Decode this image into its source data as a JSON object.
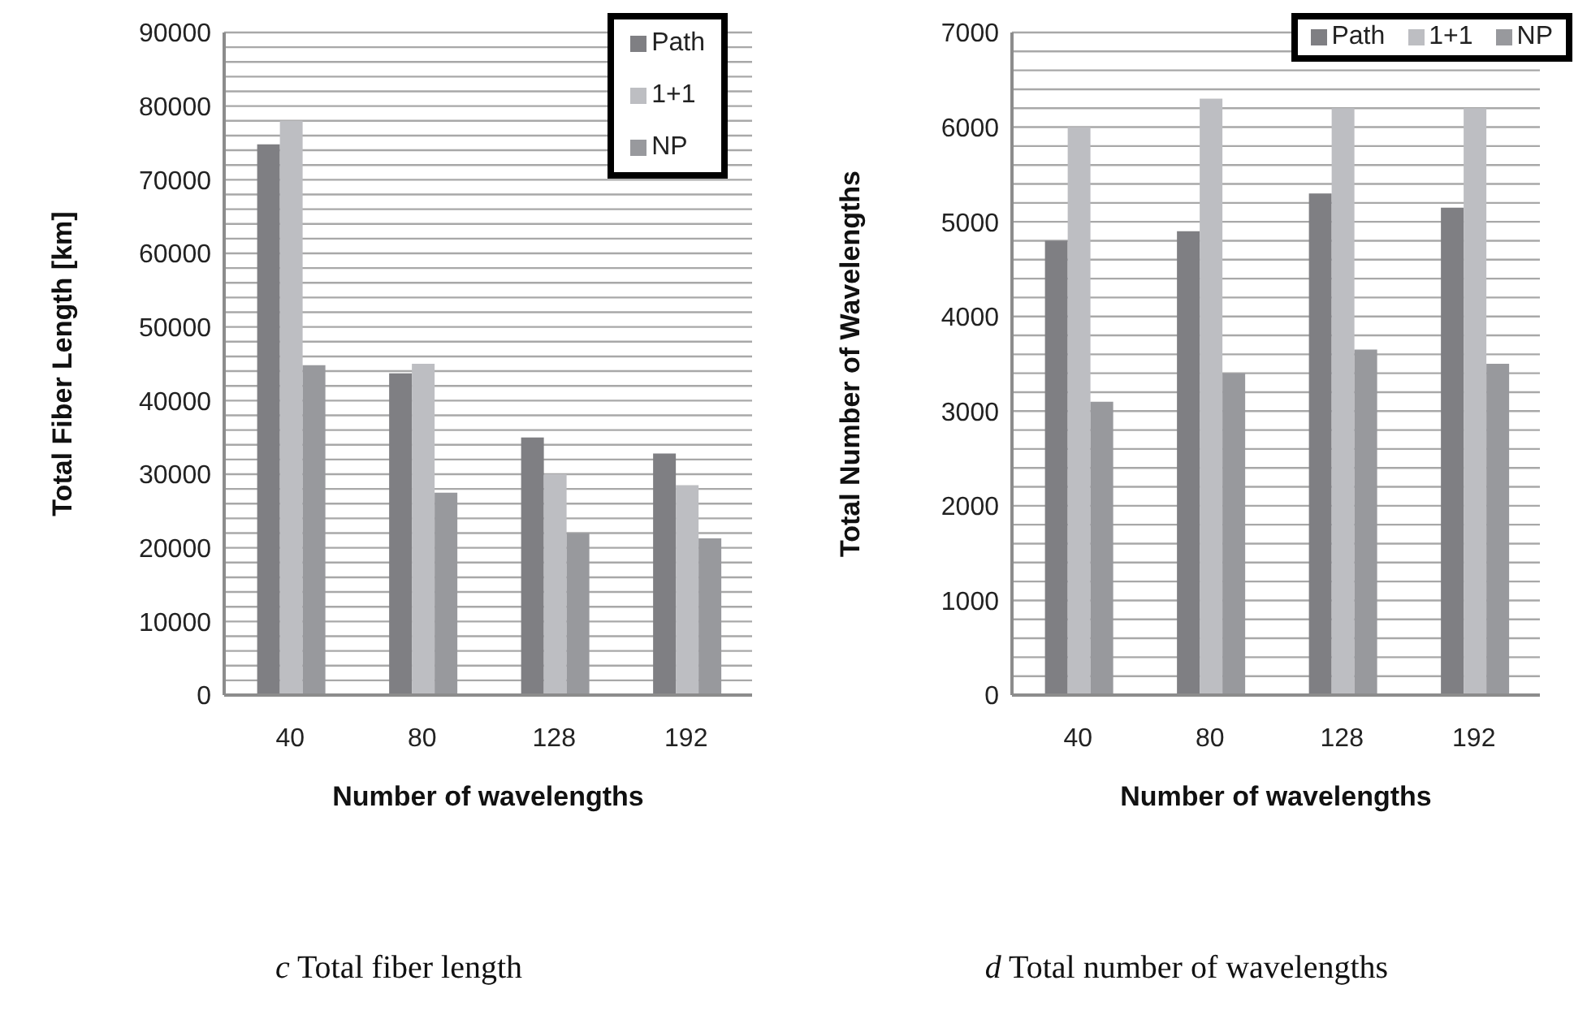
{
  "chart_data": [
    {
      "type": "bar",
      "xlabel": "Number of wavelengths",
      "ylabel": "Total Fiber Length [km]",
      "categories": [
        "40",
        "80",
        "128",
        "192"
      ],
      "series": [
        {
          "name": "Path",
          "color": "#7f7f83",
          "values": [
            74800,
            43700,
            35000,
            32800
          ]
        },
        {
          "name": "1+1",
          "color": "#bdbec2",
          "values": [
            78000,
            45000,
            30000,
            28500
          ]
        },
        {
          "name": "NP",
          "color": "#98999d",
          "values": [
            44800,
            27500,
            22000,
            21300
          ]
        }
      ],
      "ylim": [
        0,
        90000
      ],
      "yticks": [
        0,
        {
          "value": 2000,
          "label": null
        },
        {
          "value": 4000,
          "label": null
        },
        {
          "value": 6000,
          "label": null
        },
        {
          "value": 8000,
          "label": null
        },
        10000,
        {
          "value": 12000,
          "label": null
        },
        {
          "value": 14000,
          "label": null
        },
        {
          "value": 16000,
          "label": null
        },
        {
          "value": 18000,
          "label": null
        },
        20000,
        {
          "value": 22000,
          "label": null
        },
        {
          "value": 24000,
          "label": null
        },
        {
          "value": 26000,
          "label": null
        },
        {
          "value": 28000,
          "label": null
        },
        30000,
        {
          "value": 32000,
          "label": null
        },
        {
          "value": 34000,
          "label": null
        },
        {
          "value": 36000,
          "label": null
        },
        {
          "value": 38000,
          "label": null
        },
        40000,
        {
          "value": 42000,
          "label": null
        },
        {
          "value": 44000,
          "label": null
        },
        {
          "value": 46000,
          "label": null
        },
        {
          "value": 48000,
          "label": null
        },
        50000,
        {
          "value": 52000,
          "label": null
        },
        {
          "value": 54000,
          "label": null
        },
        {
          "value": 56000,
          "label": null
        },
        {
          "value": 58000,
          "label": null
        },
        60000,
        {
          "value": 62000,
          "label": null
        },
        {
          "value": 64000,
          "label": null
        },
        {
          "value": 66000,
          "label": null
        },
        {
          "value": 68000,
          "label": null
        },
        70000,
        {
          "value": 72000,
          "label": null
        },
        {
          "value": 74000,
          "label": null
        },
        {
          "value": 76000,
          "label": null
        },
        {
          "value": 78000,
          "label": null
        },
        80000,
        {
          "value": 82000,
          "label": null
        },
        {
          "value": 84000,
          "label": null
        },
        {
          "value": 86000,
          "label": null
        },
        {
          "value": 88000,
          "label": null
        },
        90000
      ],
      "grid": "y",
      "legend": "top right",
      "annotations": [
        "c Total fiber length"
      ]
    },
    {
      "type": "bar",
      "xlabel": "Number of wavelengths",
      "ylabel": "Total Number of Wavelengths",
      "categories": [
        "40",
        "80",
        "128",
        "192"
      ],
      "series": [
        {
          "name": "Path",
          "color": "#7f7f83",
          "values": [
            4800,
            4900,
            5300,
            5150
          ]
        },
        {
          "name": "1+1",
          "color": "#bdbec2",
          "values": [
            6000,
            6300,
            6200,
            6200
          ]
        },
        {
          "name": "NP",
          "color": "#98999d",
          "values": [
            3100,
            3400,
            3650,
            3500
          ]
        }
      ],
      "ylim": [
        0,
        7000
      ],
      "yticks": [
        0,
        {
          "value": 200,
          "label": null
        },
        {
          "value": 400,
          "label": null
        },
        {
          "value": 600,
          "label": null
        },
        {
          "value": 800,
          "label": null
        },
        1000,
        {
          "value": 1200,
          "label": null
        },
        {
          "value": 1400,
          "label": null
        },
        {
          "value": 1600,
          "label": null
        },
        {
          "value": 1800,
          "label": null
        },
        2000,
        {
          "value": 2200,
          "label": null
        },
        {
          "value": 2400,
          "label": null
        },
        {
          "value": 2600,
          "label": null
        },
        {
          "value": 2800,
          "label": null
        },
        3000,
        {
          "value": 3200,
          "label": null
        },
        {
          "value": 3400,
          "label": null
        },
        {
          "value": 3600,
          "label": null
        },
        {
          "value": 3800,
          "label": null
        },
        4000,
        {
          "value": 4200,
          "label": null
        },
        {
          "value": 4400,
          "label": null
        },
        {
          "value": 4600,
          "label": null
        },
        {
          "value": 4800,
          "label": null
        },
        5000,
        {
          "value": 5200,
          "label": null
        },
        {
          "value": 5400,
          "label": null
        },
        {
          "value": 5600,
          "label": null
        },
        {
          "value": 5800,
          "label": null
        },
        6000,
        {
          "value": 6200,
          "label": null
        },
        {
          "value": 6400,
          "label": null
        },
        {
          "value": 6600,
          "label": null
        },
        {
          "value": 6800,
          "label": null
        },
        7000
      ],
      "grid": "y",
      "legend": "top right",
      "annotations": [
        "d Total number of wavelengths"
      ]
    }
  ]
}
